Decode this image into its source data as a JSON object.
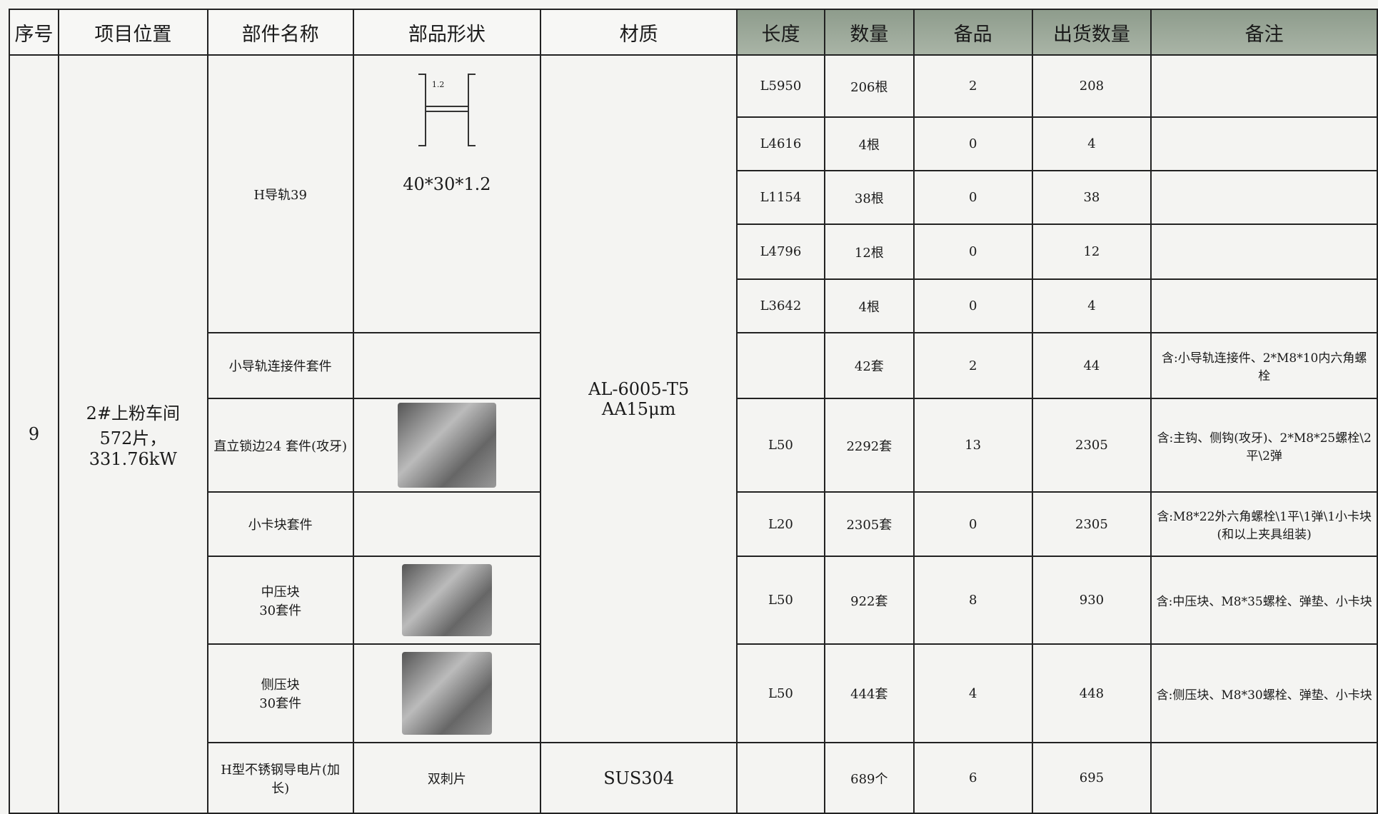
{
  "table": {
    "header": [
      "序号",
      "项目位置",
      "部件名称",
      "部品形状",
      "材质",
      "长度",
      "数量",
      "备品",
      "出货数量",
      "备注"
    ],
    "seq": "9",
    "location": [
      "2#上粉车间",
      "572片，331.76kW"
    ],
    "material_al": [
      "AL-6005-T5",
      "AA15μm"
    ],
    "material_sus": "SUS304",
    "parts": [
      {
        "name": "H导轨39",
        "shape": "40*30*1.2",
        "dim": "1.2"
      },
      {
        "name": "小导轨连接件套件"
      },
      {
        "name": "直立锁边24 套件(攻牙)"
      },
      {
        "name": "小卡块套件"
      },
      {
        "name": "中压块\n30套件"
      },
      {
        "name": "侧压块\n30套件"
      },
      {
        "name": "H型不锈钢导电片(加长)",
        "shape": "双刺片"
      }
    ],
    "rows": [
      [
        "L5950",
        "206根",
        "2",
        "208",
        null
      ],
      [
        "L4616",
        "4根",
        "0",
        "4",
        null
      ],
      [
        "L1154",
        "38根",
        "0",
        "38",
        null
      ],
      [
        "L4796",
        "12根",
        "0",
        "12",
        null
      ],
      [
        "L3642",
        "4根",
        "0",
        "4",
        null
      ],
      [
        null,
        "42套",
        "2",
        "44",
        "含:小导轨连接件、2*M8*10内六角螺栓"
      ],
      [
        "L50",
        "2292套",
        "13",
        "2305",
        "含:主钩、侧钩(攻牙)、2*M8*25螺栓\\2平\\2弹"
      ],
      [
        "L20",
        "2305套",
        "0",
        "2305",
        "含:M8*22外六角螺栓\\1平\\1弹\\1小卡块(和以上夹具组装)"
      ],
      [
        "L50",
        "922套",
        "8",
        "930",
        "含:中压块、M8*35螺栓、弹垫、小卡块"
      ],
      [
        "L50",
        "444套",
        "4",
        "448",
        "含:侧压块、M8*30螺栓、弹垫、小卡块"
      ],
      [
        null,
        "689个",
        "6",
        "695",
        null
      ]
    ]
  }
}
